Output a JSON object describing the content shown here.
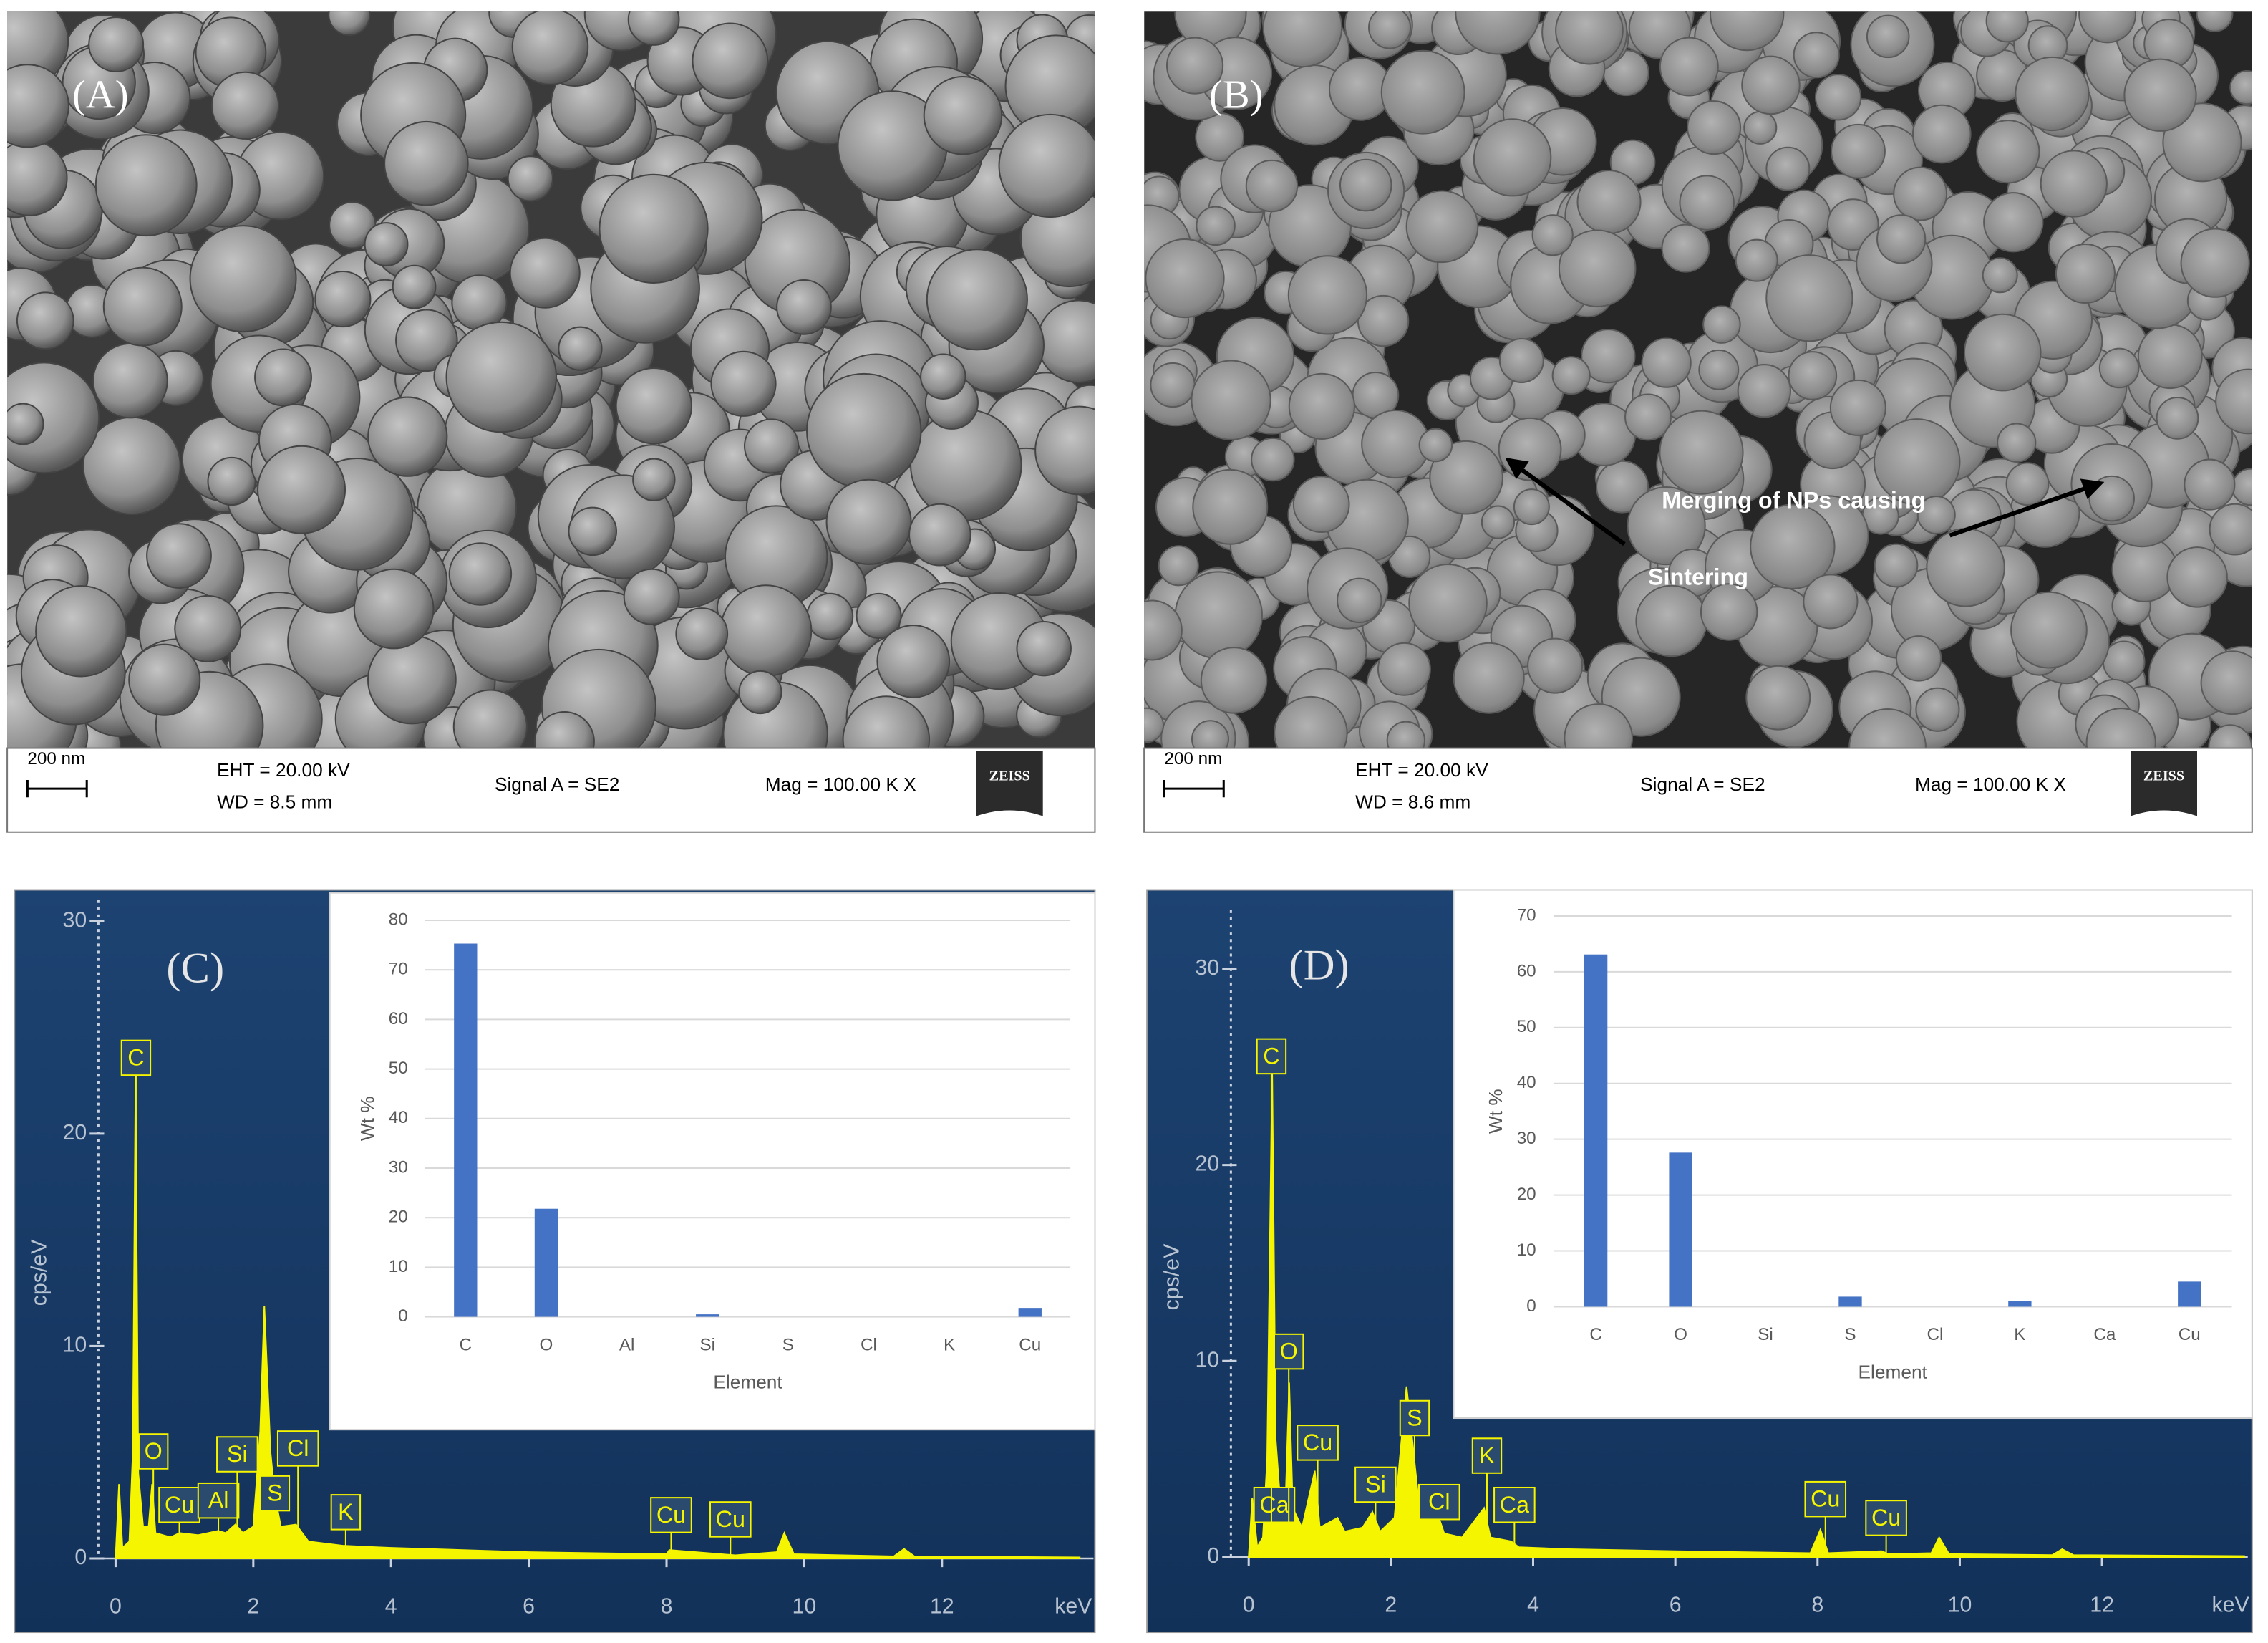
{
  "panels": [
    {
      "label": "(A)",
      "scale_bar": "200 nm",
      "eht": "EHT = 20.00 kV",
      "wd": "WD =  8.5 mm",
      "signal": "Signal A = SE2",
      "mag": "Mag =  100.00 K X",
      "logo": "ZEISS"
    },
    {
      "label": "(B)",
      "scale_bar": "200 nm",
      "eht": "EHT = 20.00 kV",
      "wd": "WD =  8.6 mm",
      "signal": "Signal A = SE2",
      "mag": "Mag =  100.00 K X",
      "logo": "ZEISS",
      "annotations": [
        "Merging of NPs causing",
        "Sintering"
      ]
    }
  ],
  "chart_data": [
    {
      "type": "area",
      "panel_label": "(C)",
      "xlabel": "keV",
      "ylabel": "cps/eV",
      "color": "#f5f500",
      "x": [
        0,
        0.05,
        0.1,
        0.2,
        0.25,
        0.29,
        0.33,
        0.4,
        0.48,
        0.53,
        0.58,
        0.8,
        0.93,
        1.2,
        1.49,
        1.6,
        1.74,
        1.85,
        2.0,
        2.1,
        2.16,
        2.25,
        2.31,
        2.4,
        2.62,
        2.8,
        3.31,
        4,
        6,
        8,
        8.04,
        9,
        9.6,
        9.71,
        9.85,
        11.3,
        11.45,
        11.6,
        14
      ],
      "values": [
        0,
        3.5,
        0.5,
        0.8,
        5,
        22.6,
        4,
        1.5,
        1.5,
        3.5,
        1.2,
        1,
        1.2,
        1.1,
        1.3,
        1.2,
        1.6,
        1.2,
        1.5,
        6,
        11.9,
        5,
        3,
        1.5,
        1.6,
        0.8,
        0.6,
        0.5,
        0.3,
        0.2,
        0.4,
        0.15,
        0.3,
        1.2,
        0.2,
        0.1,
        0.45,
        0.1,
        0.05
      ],
      "peak_labels": [
        "C",
        "O",
        "Cu",
        "Al",
        "Si",
        "S",
        "Cl",
        "K",
        "Cu",
        "Cu"
      ],
      "xlim": [
        -0.25,
        14.2
      ],
      "xticks": [
        0,
        2,
        4,
        6,
        8,
        10,
        12
      ],
      "ylim": [
        0,
        31
      ],
      "yticks": [
        0,
        10,
        20,
        30
      ]
    },
    {
      "type": "bar",
      "xlabel": "Element",
      "ylabel": "Wt %",
      "color": "#4472c4",
      "grid": true,
      "categories": [
        "C",
        "O",
        "Al",
        "Si",
        "S",
        "Cl",
        "K",
        "Cu"
      ],
      "values": [
        75.3,
        21.8,
        0,
        0.5,
        0,
        0,
        0,
        1.8
      ],
      "ylim": [
        0,
        80
      ],
      "yticks": [
        0,
        10,
        20,
        30,
        40,
        50,
        60,
        70,
        80
      ]
    },
    {
      "type": "area",
      "panel_label": "(D)",
      "xlabel": "keV",
      "ylabel": "cps/eV",
      "color": "#f5f500",
      "x": [
        0,
        0.05,
        0.12,
        0.2,
        0.26,
        0.33,
        0.38,
        0.45,
        0.52,
        0.57,
        0.62,
        0.75,
        0.93,
        1.0,
        1.25,
        1.35,
        1.6,
        1.74,
        1.85,
        2.05,
        2.15,
        2.22,
        2.3,
        2.4,
        2.55,
        2.62,
        2.75,
        3.0,
        3.31,
        3.4,
        3.69,
        3.8,
        4.5,
        6,
        7.9,
        8.04,
        8.15,
        8.9,
        9.0,
        9.6,
        9.71,
        9.85,
        11.3,
        11.44,
        11.6,
        14
      ],
      "values": [
        0,
        3,
        0.5,
        1,
        5,
        25,
        6,
        2.5,
        3,
        8.9,
        2.5,
        1.5,
        4.4,
        1.5,
        2,
        1.3,
        1.5,
        2.3,
        1.3,
        2,
        6,
        8.7,
        6,
        2.5,
        2,
        2.6,
        1.2,
        1,
        2.5,
        1,
        0.8,
        0.5,
        0.4,
        0.3,
        0.2,
        1.4,
        0.2,
        0.3,
        0.15,
        0.2,
        1.0,
        0.15,
        0.1,
        0.4,
        0.1,
        0.05
      ],
      "peak_labels": [
        "Ca",
        "C",
        "O",
        "Cu",
        "Si",
        "S",
        "Cl",
        "K",
        "Ca",
        "Cu",
        "Cu"
      ],
      "xlim": [
        -0.25,
        14.05
      ],
      "xticks": [
        0,
        2,
        4,
        6,
        8,
        10,
        12
      ],
      "ylim": [
        0,
        33
      ],
      "yticks": [
        0,
        10,
        20,
        30
      ]
    },
    {
      "type": "bar",
      "xlabel": "Element",
      "ylabel": "Wt %",
      "color": "#4472c4",
      "grid": true,
      "categories": [
        "C",
        "O",
        "Si",
        "S",
        "Cl",
        "K",
        "Ca",
        "Cu"
      ],
      "values": [
        63.1,
        27.6,
        0,
        1.8,
        0,
        1.0,
        0,
        4.5
      ],
      "ylim": [
        0,
        70
      ],
      "yticks": [
        0,
        10,
        20,
        30,
        40,
        50,
        60,
        70
      ]
    }
  ]
}
